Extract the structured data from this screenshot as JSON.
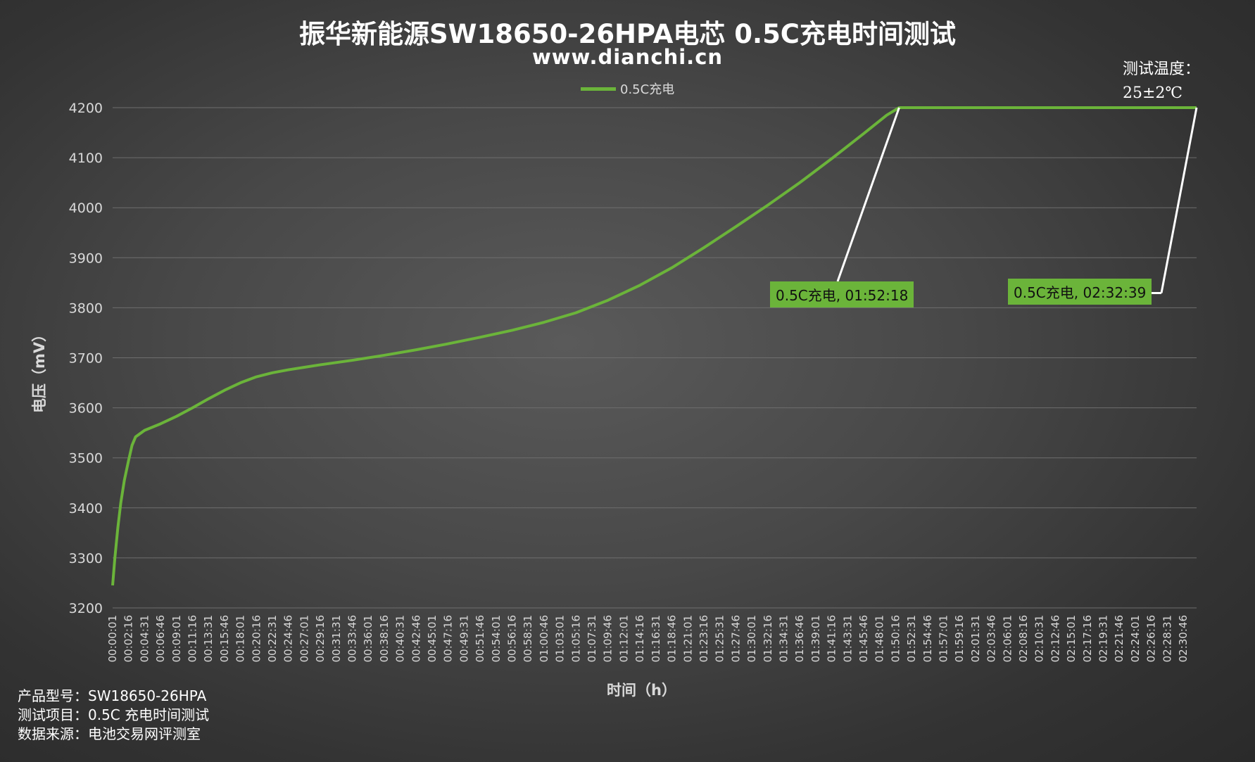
{
  "chart_data": {
    "type": "line",
    "title": "振华新能源SW18650-26HPA电芯 0.5C充电时间测试",
    "subtitle": "www.dianchi.cn",
    "xlabel": "时间（h）",
    "ylabel": "电压（mV）",
    "ylim": [
      3200,
      4200
    ],
    "yticks": [
      3200,
      3300,
      3400,
      3500,
      3600,
      3700,
      3800,
      3900,
      4000,
      4100,
      4200
    ],
    "xlim_seconds": [
      1,
      9159
    ],
    "xtick_labels": [
      "00:00:01",
      "00:02:16",
      "00:04:31",
      "00:06:46",
      "00:09:01",
      "00:11:16",
      "00:13:31",
      "00:15:46",
      "00:18:01",
      "00:20:16",
      "00:22:31",
      "00:24:46",
      "00:27:01",
      "00:29:16",
      "00:31:31",
      "00:33:46",
      "00:36:01",
      "00:38:16",
      "00:40:31",
      "00:42:46",
      "00:45:01",
      "00:47:16",
      "00:49:31",
      "00:51:46",
      "00:54:01",
      "00:56:16",
      "00:58:31",
      "01:00:46",
      "01:03:01",
      "01:05:16",
      "01:07:31",
      "01:09:46",
      "01:12:01",
      "01:14:16",
      "01:16:31",
      "01:18:46",
      "01:21:01",
      "01:23:16",
      "01:25:31",
      "01:27:46",
      "01:30:01",
      "01:32:16",
      "01:34:31",
      "01:36:46",
      "01:39:01",
      "01:41:16",
      "01:43:31",
      "01:45:46",
      "01:48:01",
      "01:50:16",
      "01:52:31",
      "01:54:46",
      "01:57:01",
      "01:59:16",
      "02:01:31",
      "02:03:46",
      "02:06:01",
      "02:08:16",
      "02:10:31",
      "02:12:46",
      "02:15:01",
      "02:17:16",
      "02:19:31",
      "02:21:46",
      "02:24:01",
      "02:26:16",
      "02:28:31",
      "02:30:46"
    ],
    "grid": true,
    "legend_position": "top-center",
    "series": [
      {
        "name": "0.5C充电",
        "color": "#6bb43a",
        "points": [
          [
            "00:00:01",
            3245
          ],
          [
            "00:00:20",
            3300
          ],
          [
            "00:00:45",
            3360
          ],
          [
            "00:01:10",
            3410
          ],
          [
            "00:01:40",
            3455
          ],
          [
            "00:02:16",
            3495
          ],
          [
            "00:02:45",
            3525
          ],
          [
            "00:03:15",
            3542
          ],
          [
            "00:04:31",
            3555
          ],
          [
            "00:06:46",
            3568
          ],
          [
            "00:09:01",
            3583
          ],
          [
            "00:11:16",
            3600
          ],
          [
            "00:13:31",
            3618
          ],
          [
            "00:15:46",
            3635
          ],
          [
            "00:18:01",
            3650
          ],
          [
            "00:20:16",
            3662
          ],
          [
            "00:22:31",
            3670
          ],
          [
            "00:24:46",
            3676
          ],
          [
            "00:27:01",
            3681
          ],
          [
            "00:29:16",
            3686
          ],
          [
            "00:33:46",
            3695
          ],
          [
            "00:38:16",
            3705
          ],
          [
            "00:42:46",
            3716
          ],
          [
            "00:47:16",
            3728
          ],
          [
            "00:51:46",
            3741
          ],
          [
            "00:56:16",
            3755
          ],
          [
            "01:00:46",
            3771
          ],
          [
            "01:05:16",
            3790
          ],
          [
            "01:09:46",
            3815
          ],
          [
            "01:14:16",
            3845
          ],
          [
            "01:18:46",
            3880
          ],
          [
            "01:23:16",
            3920
          ],
          [
            "01:27:46",
            3962
          ],
          [
            "01:32:16",
            4005
          ],
          [
            "01:36:46",
            4050
          ],
          [
            "01:41:16",
            4098
          ],
          [
            "01:45:46",
            4148
          ],
          [
            "01:49:01",
            4185
          ],
          [
            "01:50:46",
            4200
          ],
          [
            "01:52:18",
            4200
          ],
          [
            "02:32:39",
            4200
          ]
        ]
      }
    ],
    "annotations": [
      {
        "label": "0.5C充电, 01:52:18",
        "at": "01:50:46",
        "value": 4200
      },
      {
        "label": "0.5C充电, 02:32:39",
        "at": "02:32:39",
        "value": 4200
      }
    ]
  },
  "temperature_note": [
    "测试温度：",
    "25±2℃"
  ],
  "info_lines": [
    "产品型号：SW18650-26HPA",
    "测试项目：0.5C 充电时间测试",
    "数据来源：电池交易网评测室"
  ]
}
